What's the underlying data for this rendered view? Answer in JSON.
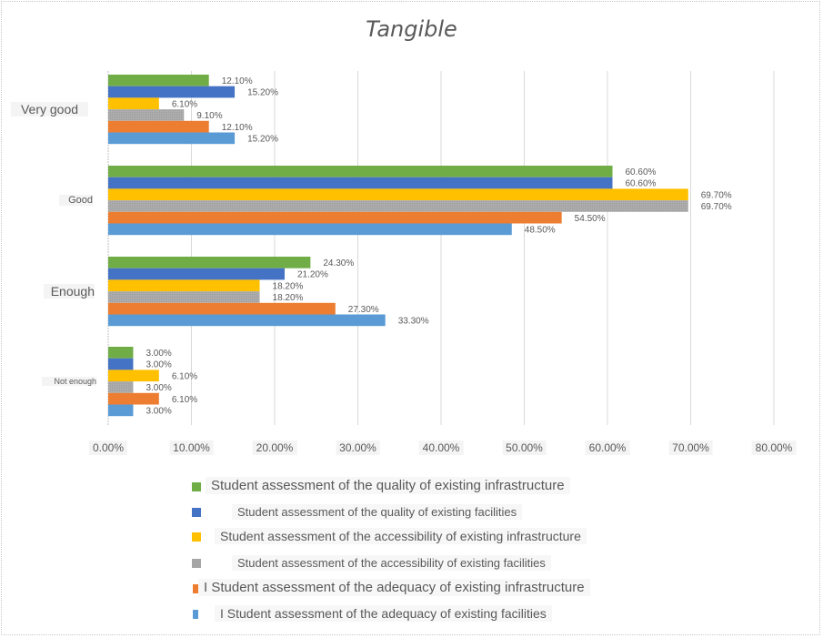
{
  "chart_data": {
    "type": "bar",
    "orientation": "horizontal",
    "title": "Tangible",
    "xlabel": "",
    "ylabel": "",
    "xlim": [
      0,
      80
    ],
    "x_ticks": [
      "0.00%",
      "10.00%",
      "20.00%",
      "30.00%",
      "40.00%",
      "50.00%",
      "60.00%",
      "70.00%",
      "80.00%"
    ],
    "grid": true,
    "legend_position": "bottom",
    "categories": [
      "Very good",
      "Good",
      "Enough",
      "Not enough"
    ],
    "series": [
      {
        "name": "Student assessment of the quality of existing infrastructure",
        "color": "#70ad47",
        "values": [
          12.1,
          60.6,
          24.3,
          3.0
        ],
        "labels": [
          "12.10%",
          "60.60%",
          "24.30%",
          "3.00%"
        ]
      },
      {
        "name": "Student assessment of the quality of existing facilities",
        "color": "#4472c4",
        "values": [
          15.2,
          60.6,
          21.2,
          3.0
        ],
        "labels": [
          "15.20%",
          "60.60%",
          "21.20%",
          "3.00%"
        ]
      },
      {
        "name": "Student assessment of the accessibility of existing infrastructure",
        "color": "#ffc000",
        "values": [
          6.1,
          69.7,
          18.2,
          6.1
        ],
        "labels": [
          "6.10%",
          "69.70%",
          "18.20%",
          "6.10%"
        ]
      },
      {
        "name": "Student assessment of the accessibility of existing facilities",
        "color": "#a5a5a5",
        "values": [
          9.1,
          69.7,
          18.2,
          3.0
        ],
        "labels": [
          "9.10%",
          "69.70%",
          "18.20%",
          "3.00%"
        ]
      },
      {
        "name": "I Student assessment of the adequacy of existing infrastructure",
        "color": "#ed7d31",
        "values": [
          12.1,
          54.5,
          27.3,
          6.1
        ],
        "labels": [
          "12.10%",
          "54.50%",
          "27.30%",
          "6.10%"
        ]
      },
      {
        "name": "I Student assessment of the adequacy of existing facilities",
        "color": "#5b9bd5",
        "values": [
          15.2,
          48.5,
          33.3,
          3.0
        ],
        "labels": [
          "15.20%",
          "48.50%",
          "33.30%",
          "3.00%"
        ]
      }
    ]
  }
}
